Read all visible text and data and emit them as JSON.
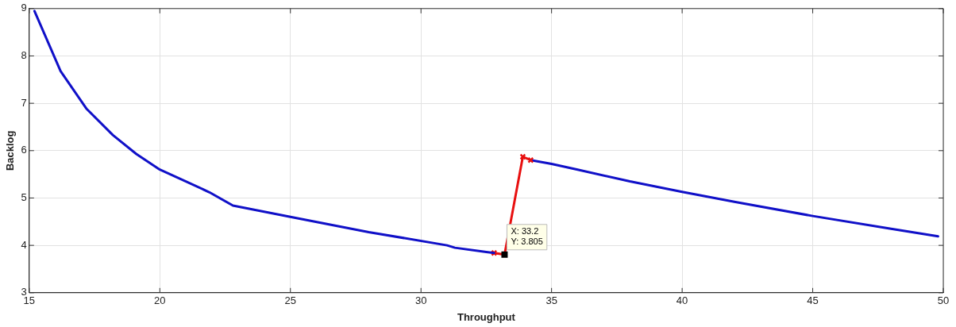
{
  "chart_data": {
    "type": "line",
    "xlabel": "Throughput",
    "ylabel": "Backlog",
    "xlim": [
      15,
      50
    ],
    "xticks": [
      15,
      20,
      25,
      30,
      35,
      40,
      45,
      50
    ],
    "ylim": [
      3,
      9
    ],
    "yticks": [
      3,
      4,
      5,
      6,
      7,
      8,
      9
    ],
    "grid": true,
    "legend": false,
    "line_style": "solid",
    "series": [
      {
        "color": "#1010c8",
        "marker": "none",
        "x": [
          15.2,
          16.2,
          17.2,
          18.2,
          19.1,
          20,
          21,
          21.9,
          22.8,
          25,
          28,
          31,
          31.3,
          32.5,
          32.8
        ],
        "values": [
          8.95,
          7.68,
          6.88,
          6.33,
          5.93,
          5.6,
          5.35,
          5.12,
          4.84,
          4.6,
          4.28,
          4.0,
          3.95,
          3.86,
          3.84
        ]
      },
      {
        "color": "#e81010",
        "marker": "cross",
        "x": [
          32.8,
          33.2,
          33.9,
          34.2
        ],
        "values": [
          3.84,
          3.805,
          5.87,
          5.8
        ]
      },
      {
        "color": "#1010c8",
        "marker": "none",
        "x": [
          34.2,
          35,
          36,
          38,
          40,
          42,
          45,
          48,
          49.8
        ],
        "values": [
          5.8,
          5.72,
          5.6,
          5.35,
          5.13,
          4.92,
          4.62,
          4.35,
          4.19
        ]
      }
    ],
    "annotations": [
      {
        "text": "X: 33.2\nY: 3.805",
        "x": 33.2,
        "y": 3.805
      }
    ]
  }
}
